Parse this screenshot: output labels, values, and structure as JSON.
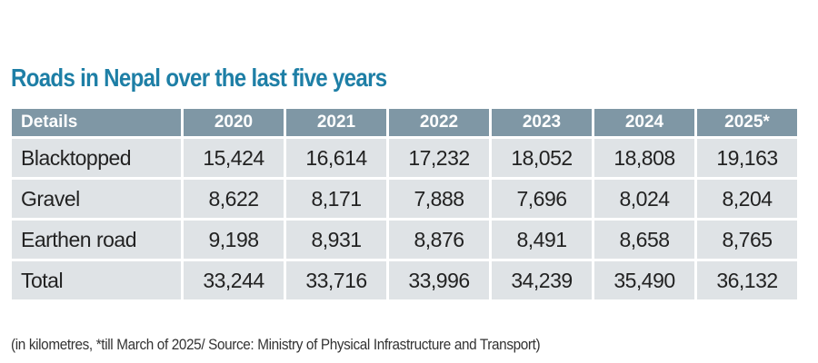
{
  "title": "Roads in Nepal over the last five years",
  "note": "(in kilometres, *till March of 2025/ Source: Ministry of Physical Infrastructure and Transport)",
  "colors": {
    "title": "#1e7fa6",
    "header_bg": "#7f97a5",
    "cell_bg": "#dfe3e6",
    "text": "#222222"
  },
  "chart_data": {
    "type": "table",
    "title": "Roads in Nepal over the last five years",
    "columns": [
      "Details",
      "2020",
      "2021",
      "2022",
      "2023",
      "2024",
      "2025*"
    ],
    "rows": [
      {
        "label": "Blacktopped",
        "values": [
          "15,424",
          "16,614",
          "17,232",
          "18,052",
          "18,808",
          "19,163"
        ]
      },
      {
        "label": "Gravel",
        "values": [
          "8,622",
          "8,171",
          "7,888",
          "7,696",
          "8,024",
          "8,204"
        ]
      },
      {
        "label": "Earthen road",
        "values": [
          "9,198",
          "8,931",
          "8,876",
          "8,491",
          "8,658",
          "8,765"
        ]
      },
      {
        "label": "Total",
        "values": [
          "33,244",
          "33,716",
          "33,996",
          "34,239",
          "35,490",
          "36,132"
        ]
      }
    ],
    "note": "(in kilometres, *till March of 2025/ Source: Ministry of Physical Infrastructure and Transport)"
  }
}
